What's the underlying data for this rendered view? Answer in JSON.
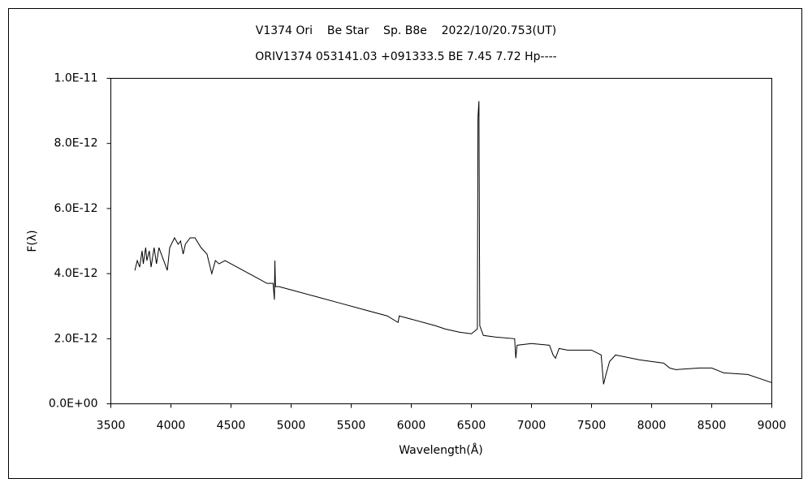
{
  "chart_data": {
    "type": "line",
    "title": "V1374 Ori    Be Star    Sp. B8e    2022/10/20.753(UT)",
    "subtitle": "ORIV1374 053141.03 +091333.5 BE 7.45 7.72 Hp----",
    "x_label": "Wavelength(Å)",
    "y_label": "F(λ)",
    "xlim": [
      3500,
      9000
    ],
    "xticks": [
      3500,
      4000,
      4500,
      5000,
      5500,
      6000,
      6500,
      7000,
      7500,
      8000,
      8500,
      9000
    ],
    "ylim": [
      0,
      1e-11
    ],
    "yticks": [
      {
        "value": 0,
        "label": "0.0E+00"
      },
      {
        "value": 2e-12,
        "label": "2.0E-12"
      },
      {
        "value": 4e-12,
        "label": "4.0E-12"
      },
      {
        "value": 6e-12,
        "label": "6.0E-12"
      },
      {
        "value": 8e-12,
        "label": "8.0E-12"
      },
      {
        "value": 1e-11,
        "label": "1.0E-11"
      }
    ],
    "grid": false,
    "color": "#000000",
    "x": [
      3700,
      3720,
      3740,
      3760,
      3770,
      3790,
      3800,
      3820,
      3835,
      3860,
      3880,
      3900,
      3920,
      3940,
      3970,
      3990,
      4030,
      4060,
      4080,
      4102,
      4120,
      4160,
      4200,
      4250,
      4300,
      4340,
      4370,
      4400,
      4450,
      4500,
      4600,
      4700,
      4800,
      4850,
      4861,
      4865,
      4870,
      4900,
      5000,
      5200,
      5400,
      5600,
      5800,
      5890,
      5900,
      6000,
      6200,
      6280,
      6400,
      6500,
      6550,
      6555,
      6563,
      6570,
      6600,
      6700,
      6860,
      6870,
      6880,
      7000,
      7150,
      7180,
      7200,
      7230,
      7300,
      7500,
      7580,
      7600,
      7620,
      7650,
      7700,
      7900,
      8100,
      8150,
      8200,
      8400,
      8500,
      8600,
      8800,
      9000
    ],
    "values": [
      4.1e-12,
      4.4e-12,
      4.2e-12,
      4.7e-12,
      4.3e-12,
      4.8e-12,
      4.4e-12,
      4.7e-12,
      4.2e-12,
      4.8e-12,
      4.3e-12,
      4.8e-12,
      4.6e-12,
      4.4e-12,
      4.1e-12,
      4.8e-12,
      5.1e-12,
      4.9e-12,
      5e-12,
      4.6e-12,
      4.9e-12,
      5.1e-12,
      5.1e-12,
      4.8e-12,
      4.6e-12,
      4e-12,
      4.4e-12,
      4.3e-12,
      4.4e-12,
      4.3e-12,
      4.1e-12,
      3.9e-12,
      3.7e-12,
      3.7e-12,
      3.2e-12,
      4.4e-12,
      3.6e-12,
      3.6e-12,
      3.5e-12,
      3.3e-12,
      3.1e-12,
      2.9e-12,
      2.7e-12,
      2.5e-12,
      2.7e-12,
      2.6e-12,
      2.4e-12,
      2.3e-12,
      2.2e-12,
      2.15e-12,
      2.3e-12,
      8.8e-12,
      9.3e-12,
      2.4e-12,
      2.1e-12,
      2.05e-12,
      2e-12,
      1.4e-12,
      1.8e-12,
      1.85e-12,
      1.8e-12,
      1.5e-12,
      1.4e-12,
      1.7e-12,
      1.65e-12,
      1.65e-12,
      1.5e-12,
      6e-13,
      9e-13,
      1.3e-12,
      1.5e-12,
      1.35e-12,
      1.25e-12,
      1.1e-12,
      1.05e-12,
      1.1e-12,
      1.1e-12,
      9.5e-13,
      9e-13,
      6.5e-13
    ]
  }
}
